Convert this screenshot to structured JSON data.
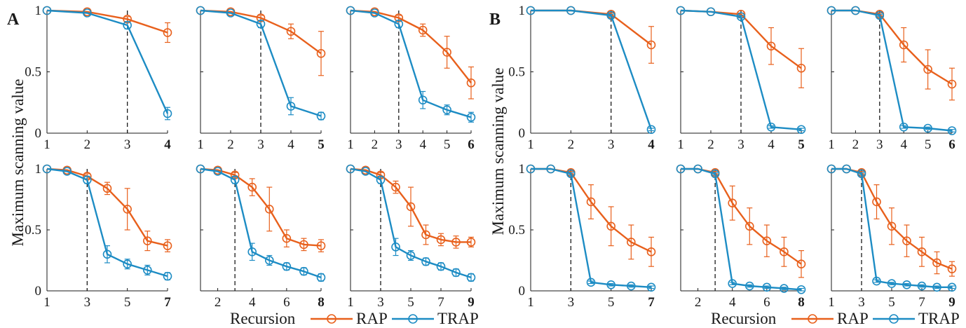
{
  "colors": {
    "rap": "#e8601c",
    "trap": "#1d8cc4",
    "axis": "#1a1a1a"
  },
  "panels": {
    "A": {
      "letter": "A",
      "ylabel": "Maximum scanning value"
    },
    "B": {
      "letter": "B",
      "ylabel": "Maximum scanning value"
    }
  },
  "legend": {
    "xlabel": "Recursion",
    "rap": "RAP",
    "trap": "TRAP"
  },
  "y_ticks": [
    {
      "v": 0,
      "label": "0"
    },
    {
      "v": 0.5,
      "label": "0.5"
    },
    {
      "v": 1,
      "label": "1"
    }
  ],
  "chart_data": [
    {
      "id": "A1",
      "panel": "A",
      "row": 0,
      "col": 0,
      "type": "line",
      "xlim": [
        1,
        4
      ],
      "ylim": [
        0,
        1
      ],
      "xticks": [
        1,
        2,
        3,
        4
      ],
      "bold_tick": 4,
      "switch": 3,
      "series": [
        {
          "name": "RAP",
          "x": [
            1,
            2,
            3,
            4
          ],
          "y": [
            1,
            0.99,
            0.93,
            0.82
          ],
          "err": [
            0,
            0,
            0.02,
            0.08
          ]
        },
        {
          "name": "TRAP",
          "x": [
            1,
            2,
            3,
            4
          ],
          "y": [
            1,
            0.98,
            0.88,
            0.16
          ],
          "err": [
            0,
            0,
            0.03,
            0.05
          ]
        }
      ]
    },
    {
      "id": "A2",
      "panel": "A",
      "row": 0,
      "col": 1,
      "type": "line",
      "xlim": [
        1,
        5
      ],
      "ylim": [
        0,
        1
      ],
      "xticks": [
        1,
        2,
        3,
        4,
        5
      ],
      "bold_tick": 5,
      "switch": 3,
      "series": [
        {
          "name": "RAP",
          "x": [
            1,
            2,
            3,
            4,
            5
          ],
          "y": [
            1,
            0.99,
            0.94,
            0.83,
            0.65
          ],
          "err": [
            0,
            0,
            0.02,
            0.06,
            0.18
          ]
        },
        {
          "name": "TRAP",
          "x": [
            1,
            2,
            3,
            4,
            5
          ],
          "y": [
            1,
            0.98,
            0.89,
            0.22,
            0.14
          ],
          "err": [
            0,
            0,
            0.03,
            0.07,
            0.03
          ]
        }
      ]
    },
    {
      "id": "A3",
      "panel": "A",
      "row": 0,
      "col": 2,
      "type": "line",
      "xlim": [
        1,
        6
      ],
      "ylim": [
        0,
        1
      ],
      "xticks": [
        1,
        2,
        3,
        4,
        5,
        6
      ],
      "bold_tick": 6,
      "switch": 3,
      "series": [
        {
          "name": "RAP",
          "x": [
            1,
            2,
            3,
            4,
            5,
            6
          ],
          "y": [
            1,
            0.99,
            0.94,
            0.84,
            0.66,
            0.41
          ],
          "err": [
            0,
            0,
            0.02,
            0.05,
            0.13,
            0.13
          ]
        },
        {
          "name": "TRAP",
          "x": [
            1,
            2,
            3,
            4,
            5,
            6
          ],
          "y": [
            1,
            0.98,
            0.89,
            0.27,
            0.19,
            0.13
          ],
          "err": [
            0,
            0,
            0.03,
            0.07,
            0.04,
            0.04
          ]
        }
      ]
    },
    {
      "id": "A4",
      "panel": "A",
      "row": 1,
      "col": 0,
      "type": "line",
      "xlim": [
        1,
        7
      ],
      "ylim": [
        0,
        1
      ],
      "xticks": [
        1,
        3,
        5,
        7
      ],
      "bold_tick": 7,
      "switch": 3,
      "series": [
        {
          "name": "RAP",
          "x": [
            1,
            2,
            3,
            4,
            5,
            6,
            7
          ],
          "y": [
            1,
            0.99,
            0.94,
            0.84,
            0.67,
            0.41,
            0.37
          ],
          "err": [
            0,
            0,
            0.02,
            0.05,
            0.17,
            0.08,
            0.05
          ]
        },
        {
          "name": "TRAP",
          "x": [
            1,
            2,
            3,
            4,
            5,
            6,
            7
          ],
          "y": [
            1,
            0.98,
            0.91,
            0.3,
            0.22,
            0.17,
            0.12
          ],
          "err": [
            0,
            0,
            0.03,
            0.07,
            0.04,
            0.04,
            0.03
          ]
        }
      ]
    },
    {
      "id": "A5",
      "panel": "A",
      "row": 1,
      "col": 1,
      "type": "line",
      "xlim": [
        1,
        8
      ],
      "ylim": [
        0,
        1
      ],
      "xticks": [
        2,
        4,
        6,
        8
      ],
      "bold_tick": 8,
      "switch": 3,
      "series": [
        {
          "name": "RAP",
          "x": [
            1,
            2,
            3,
            4,
            5,
            6,
            7,
            8
          ],
          "y": [
            1,
            0.99,
            0.95,
            0.85,
            0.67,
            0.43,
            0.38,
            0.37
          ],
          "err": [
            0,
            0,
            0.02,
            0.07,
            0.18,
            0.07,
            0.05,
            0.05
          ]
        },
        {
          "name": "TRAP",
          "x": [
            1,
            2,
            3,
            4,
            5,
            6,
            7,
            8
          ],
          "y": [
            1,
            0.98,
            0.91,
            0.32,
            0.25,
            0.2,
            0.16,
            0.11
          ],
          "err": [
            0,
            0,
            0.03,
            0.07,
            0.04,
            0.03,
            0.03,
            0.03
          ]
        }
      ]
    },
    {
      "id": "A6",
      "panel": "A",
      "row": 1,
      "col": 2,
      "type": "line",
      "xlim": [
        1,
        9
      ],
      "ylim": [
        0,
        1
      ],
      "xticks": [
        1,
        3,
        5,
        7,
        9
      ],
      "bold_tick": 9,
      "switch": 3,
      "series": [
        {
          "name": "RAP",
          "x": [
            1,
            2,
            3,
            4,
            5,
            6,
            7,
            8,
            9
          ],
          "y": [
            1,
            0.99,
            0.95,
            0.85,
            0.69,
            0.46,
            0.42,
            0.4,
            0.4
          ],
          "err": [
            0,
            0,
            0.02,
            0.05,
            0.16,
            0.08,
            0.05,
            0.05,
            0.04
          ]
        },
        {
          "name": "TRAP",
          "x": [
            1,
            2,
            3,
            4,
            5,
            6,
            7,
            8,
            9
          ],
          "y": [
            1,
            0.98,
            0.91,
            0.36,
            0.29,
            0.24,
            0.2,
            0.15,
            0.11
          ],
          "err": [
            0,
            0,
            0.03,
            0.07,
            0.04,
            0.03,
            0.03,
            0.03,
            0.03
          ]
        }
      ]
    },
    {
      "id": "B1",
      "panel": "B",
      "row": 0,
      "col": 0,
      "type": "line",
      "xlim": [
        1,
        4
      ],
      "ylim": [
        0,
        1
      ],
      "xticks": [
        1,
        2,
        3,
        4
      ],
      "bold_tick": 4,
      "switch": 3,
      "series": [
        {
          "name": "RAP",
          "x": [
            1,
            2,
            3,
            4
          ],
          "y": [
            1,
            1,
            0.97,
            0.72
          ],
          "err": [
            0,
            0,
            0.01,
            0.15
          ]
        },
        {
          "name": "TRAP",
          "x": [
            1,
            2,
            3,
            4
          ],
          "y": [
            1,
            1,
            0.96,
            0.03
          ],
          "err": [
            0,
            0,
            0.01,
            0.01
          ]
        }
      ]
    },
    {
      "id": "B2",
      "panel": "B",
      "row": 0,
      "col": 1,
      "type": "line",
      "xlim": [
        1,
        5
      ],
      "ylim": [
        0,
        1
      ],
      "xticks": [
        1,
        2,
        3,
        4,
        5
      ],
      "bold_tick": 5,
      "switch": 3,
      "series": [
        {
          "name": "RAP",
          "x": [
            1,
            2,
            3,
            4,
            5
          ],
          "y": [
            1,
            0.99,
            0.97,
            0.71,
            0.53
          ],
          "err": [
            0,
            0,
            0.01,
            0.15,
            0.16
          ]
        },
        {
          "name": "TRAP",
          "x": [
            1,
            2,
            3,
            4,
            5
          ],
          "y": [
            1,
            0.99,
            0.95,
            0.05,
            0.03
          ],
          "err": [
            0,
            0,
            0.01,
            0.01,
            0.01
          ]
        }
      ]
    },
    {
      "id": "B3",
      "panel": "B",
      "row": 0,
      "col": 2,
      "type": "line",
      "xlim": [
        1,
        6
      ],
      "ylim": [
        0,
        1
      ],
      "xticks": [
        1,
        2,
        3,
        4,
        5,
        6
      ],
      "bold_tick": 6,
      "switch": 3,
      "series": [
        {
          "name": "RAP",
          "x": [
            1,
            2,
            3,
            4,
            5,
            6
          ],
          "y": [
            1,
            1,
            0.97,
            0.72,
            0.52,
            0.4
          ],
          "err": [
            0,
            0,
            0.01,
            0.14,
            0.16,
            0.13
          ]
        },
        {
          "name": "TRAP",
          "x": [
            1,
            2,
            3,
            4,
            5,
            6
          ],
          "y": [
            1,
            1,
            0.96,
            0.05,
            0.04,
            0.02
          ],
          "err": [
            0,
            0,
            0.01,
            0.01,
            0.01,
            0.01
          ]
        }
      ]
    },
    {
      "id": "B4",
      "panel": "B",
      "row": 1,
      "col": 0,
      "type": "line",
      "xlim": [
        1,
        7
      ],
      "ylim": [
        0,
        1
      ],
      "xticks": [
        1,
        3,
        5,
        7
      ],
      "bold_tick": 7,
      "switch": 3,
      "series": [
        {
          "name": "RAP",
          "x": [
            1,
            2,
            3,
            4,
            5,
            6,
            7
          ],
          "y": [
            1,
            1,
            0.97,
            0.73,
            0.53,
            0.4,
            0.32
          ],
          "err": [
            0,
            0,
            0.01,
            0.14,
            0.16,
            0.14,
            0.12
          ]
        },
        {
          "name": "TRAP",
          "x": [
            1,
            2,
            3,
            4,
            5,
            6,
            7
          ],
          "y": [
            1,
            1,
            0.96,
            0.07,
            0.05,
            0.04,
            0.03
          ],
          "err": [
            0,
            0,
            0.01,
            0.01,
            0.01,
            0.01,
            0.01
          ]
        }
      ]
    },
    {
      "id": "B5",
      "panel": "B",
      "row": 1,
      "col": 1,
      "type": "line",
      "xlim": [
        1,
        8
      ],
      "ylim": [
        0,
        1
      ],
      "xticks": [
        2,
        4,
        6,
        8
      ],
      "bold_tick": 8,
      "switch": 3,
      "series": [
        {
          "name": "RAP",
          "x": [
            1,
            2,
            3,
            4,
            5,
            6,
            7,
            8
          ],
          "y": [
            1,
            1,
            0.97,
            0.72,
            0.53,
            0.41,
            0.32,
            0.22
          ],
          "err": [
            0,
            0,
            0.01,
            0.14,
            0.15,
            0.13,
            0.12,
            0.11
          ]
        },
        {
          "name": "TRAP",
          "x": [
            1,
            2,
            3,
            4,
            5,
            6,
            7,
            8
          ],
          "y": [
            1,
            1,
            0.96,
            0.06,
            0.04,
            0.03,
            0.02,
            0.01
          ],
          "err": [
            0,
            0,
            0.01,
            0.01,
            0.01,
            0.01,
            0.01,
            0.01
          ]
        }
      ]
    },
    {
      "id": "B6",
      "panel": "B",
      "row": 1,
      "col": 2,
      "type": "line",
      "xlim": [
        1,
        9
      ],
      "ylim": [
        0,
        1
      ],
      "xticks": [
        1,
        3,
        5,
        7,
        9
      ],
      "bold_tick": 9,
      "switch": 3,
      "series": [
        {
          "name": "RAP",
          "x": [
            1,
            2,
            3,
            4,
            5,
            6,
            7,
            8,
            9
          ],
          "y": [
            1,
            1,
            0.97,
            0.73,
            0.53,
            0.41,
            0.32,
            0.23,
            0.18
          ],
          "err": [
            0,
            0,
            0.01,
            0.14,
            0.15,
            0.13,
            0.12,
            0.09,
            0.06
          ]
        },
        {
          "name": "TRAP",
          "x": [
            1,
            2,
            3,
            4,
            5,
            6,
            7,
            8,
            9
          ],
          "y": [
            1,
            1,
            0.96,
            0.08,
            0.06,
            0.05,
            0.04,
            0.03,
            0.03
          ],
          "err": [
            0,
            0,
            0.01,
            0.01,
            0.01,
            0.01,
            0.01,
            0.01,
            0.01
          ]
        }
      ]
    }
  ]
}
